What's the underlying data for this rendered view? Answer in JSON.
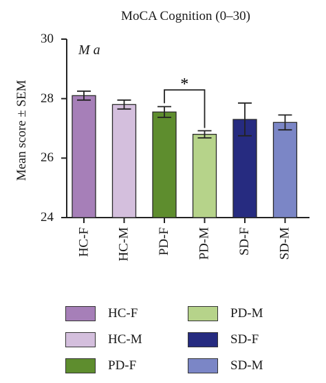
{
  "chart_data": {
    "type": "bar",
    "title": "MoCA Cognition (0–30)",
    "panel_label": "M a",
    "ylabel": "Mean score ± SEM",
    "ylim": [
      24,
      30
    ],
    "yticks": [
      "24",
      "26",
      "28",
      "30"
    ],
    "categories": [
      "HC-F",
      "HC-M",
      "PD-F",
      "PD-M",
      "SD-F",
      "SD-M"
    ],
    "values": [
      28.1,
      27.8,
      27.55,
      26.8,
      27.3,
      27.2
    ],
    "errors": [
      0.15,
      0.15,
      0.18,
      0.12,
      0.55,
      0.25
    ],
    "colors": [
      "#a67fb8",
      "#d4bfdd",
      "#5e8d2e",
      "#b6d38a",
      "#262b80",
      "#7b86c6"
    ],
    "significance": {
      "from": "PD-F",
      "to": "PD-M",
      "label": "*"
    },
    "legend": [
      "HC-F",
      "HC-M",
      "PD-F",
      "PD-M",
      "SD-F",
      "SD-M"
    ],
    "grid": false
  }
}
